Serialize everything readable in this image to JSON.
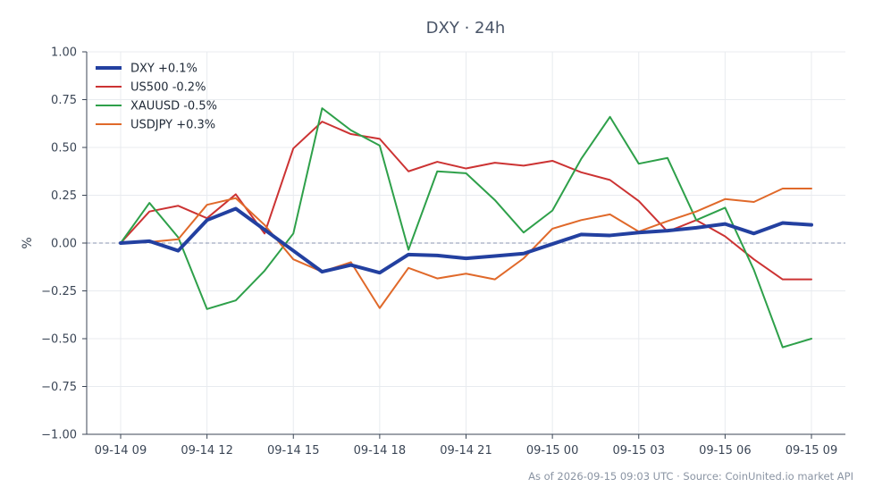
{
  "chart_data": {
    "type": "line",
    "title": "DXY · 24h",
    "xlabel": "",
    "ylabel": "%",
    "ylim": [
      -1.0,
      1.0
    ],
    "yticks": [
      1.0,
      0.75,
      0.5,
      0.25,
      0.0,
      -0.25,
      -0.5,
      -0.75,
      -1.0
    ],
    "ytick_labels": [
      "1.00",
      "0.75",
      "0.50",
      "0.25",
      "0.00",
      "−0.25",
      "−0.50",
      "−0.75",
      "−1.00"
    ],
    "x": [
      "09-14 09:00",
      "09-14 10:00",
      "09-14 11:00",
      "09-14 12:00",
      "09-14 13:00",
      "09-14 14:00",
      "09-14 15:00",
      "09-14 16:00",
      "09-14 17:00",
      "09-14 18:00",
      "09-14 19:00",
      "09-14 20:00",
      "09-14 21:00",
      "09-14 22:00",
      "09-14 23:00",
      "09-15 00:00",
      "09-15 01:00",
      "09-15 02:00",
      "09-15 03:00",
      "09-15 04:00",
      "09-15 05:00",
      "09-15 06:00",
      "09-15 07:00",
      "09-15 08:00",
      "09-15 09:00"
    ],
    "xticks": [
      0,
      3,
      6,
      9,
      12,
      15,
      18,
      21,
      24
    ],
    "xtick_labels": [
      "09-14 09",
      "09-14 12",
      "09-14 15",
      "09-14 18",
      "09-14 21",
      "09-15 00",
      "09-15 03",
      "09-15 06",
      "09-15 09"
    ],
    "grid": true,
    "zero_line": true,
    "legend_position": "top-left",
    "series": [
      {
        "name": "DXY +0.1%",
        "color": "#2340a0",
        "emphasis": true,
        "values": [
          0.0,
          0.01,
          -0.04,
          0.12,
          0.18,
          0.07,
          -0.04,
          -0.15,
          -0.115,
          -0.155,
          -0.06,
          -0.065,
          -0.08,
          -0.068,
          -0.055,
          -0.005,
          0.045,
          0.04,
          0.055,
          0.065,
          0.08,
          0.1,
          0.05,
          0.105,
          0.095
        ]
      },
      {
        "name": "US500 -0.2%",
        "color": "#cc3333",
        "emphasis": false,
        "values": [
          0.0,
          0.165,
          0.195,
          0.13,
          0.255,
          0.05,
          0.495,
          0.635,
          0.57,
          0.545,
          0.375,
          0.425,
          0.39,
          0.42,
          0.405,
          0.43,
          0.37,
          0.33,
          0.22,
          0.06,
          0.12,
          0.035,
          -0.085,
          -0.19,
          -0.19
        ]
      },
      {
        "name": "XAUUSD -0.5%",
        "color": "#2ea04a",
        "emphasis": false,
        "values": [
          0.0,
          0.21,
          0.03,
          -0.345,
          -0.3,
          -0.145,
          0.05,
          0.705,
          0.59,
          0.51,
          -0.035,
          0.375,
          0.365,
          0.225,
          0.055,
          0.17,
          0.44,
          0.66,
          0.415,
          0.445,
          0.12,
          0.185,
          -0.14,
          -0.545,
          -0.5
        ]
      },
      {
        "name": "USDJPY +0.3%",
        "color": "#e0692a",
        "emphasis": false,
        "values": [
          0.0,
          0.005,
          0.02,
          0.2,
          0.235,
          0.095,
          -0.085,
          -0.15,
          -0.1,
          -0.34,
          -0.13,
          -0.185,
          -0.16,
          -0.19,
          -0.08,
          0.075,
          0.12,
          0.15,
          0.06,
          0.115,
          0.165,
          0.23,
          0.215,
          0.285,
          0.285
        ]
      }
    ],
    "footer": "As of 2026-09-15 09:03 UTC · Source: CoinUnited.io market API"
  }
}
